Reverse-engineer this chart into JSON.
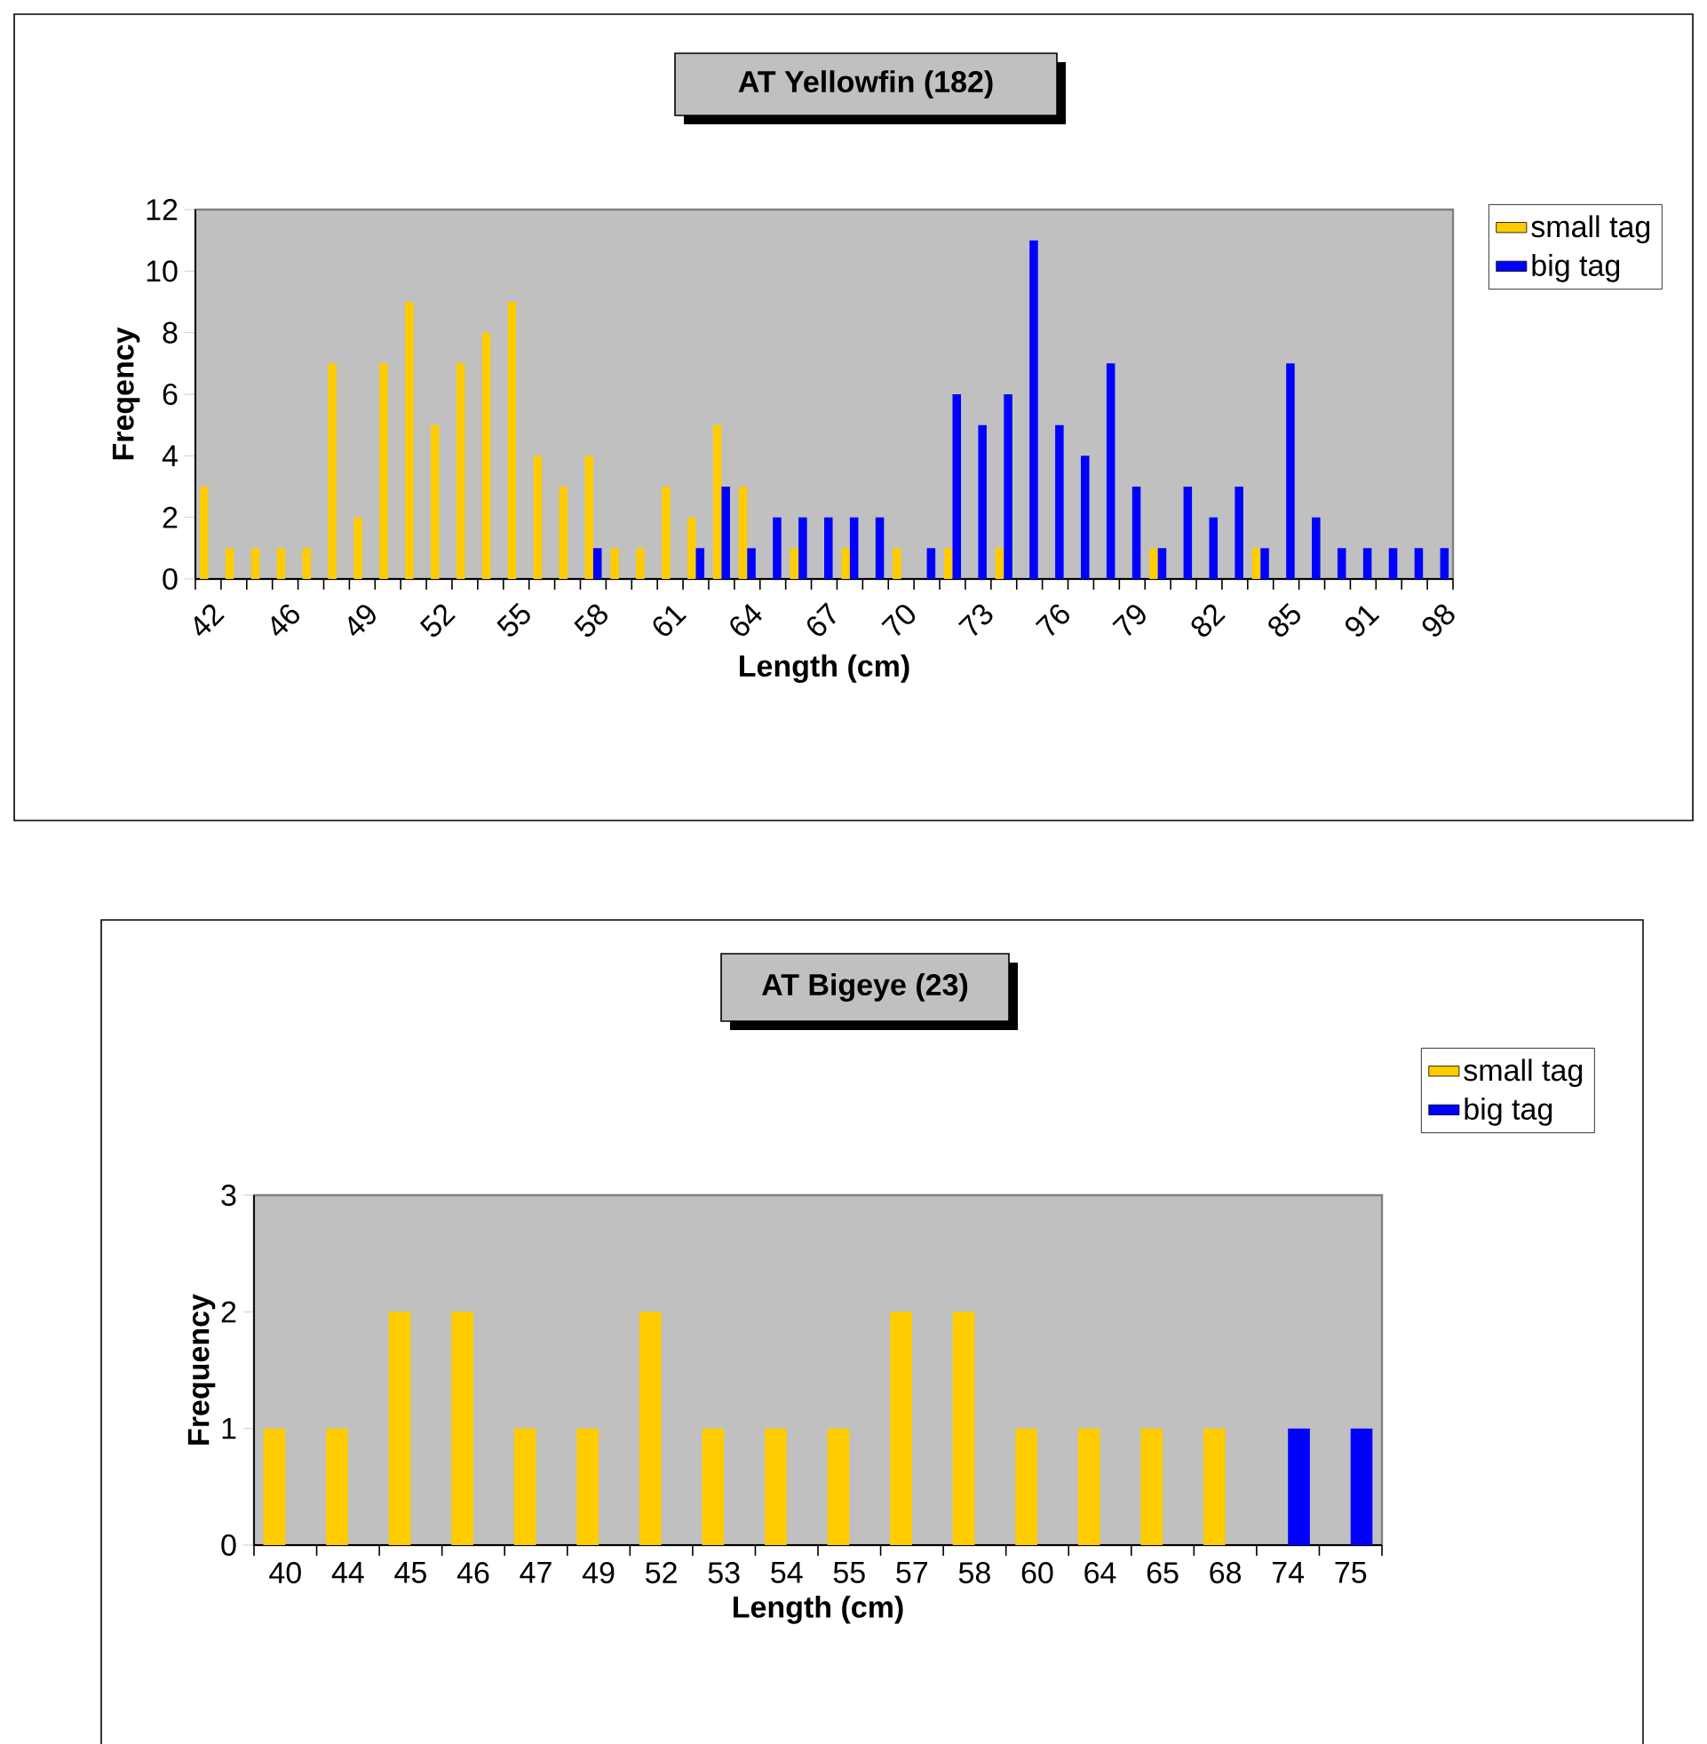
{
  "chart_data": [
    {
      "type": "bar",
      "title": "AT Yellowfin (182)",
      "xlabel": "Length (cm)",
      "ylabel": "Freqency",
      "categories": [
        "42",
        null,
        null,
        "46",
        null,
        null,
        "49",
        null,
        null,
        "52",
        null,
        null,
        "55",
        null,
        null,
        "58",
        null,
        null,
        "61",
        null,
        null,
        "64",
        null,
        null,
        "67",
        null,
        null,
        "70",
        null,
        null,
        "73",
        null,
        null,
        "76",
        null,
        null,
        "79",
        null,
        null,
        "82",
        null,
        null,
        "85",
        null,
        null,
        "91",
        null,
        null,
        "98"
      ],
      "series": [
        {
          "name": "small tag",
          "color": "#ffcc00",
          "values": [
            3,
            1,
            1,
            1,
            1,
            7,
            2,
            7,
            9,
            5,
            7,
            8,
            9,
            4,
            3,
            4,
            1,
            1,
            3,
            2,
            5,
            3,
            0,
            1,
            0,
            1,
            0,
            1,
            0,
            1,
            0,
            1,
            0,
            0,
            0,
            0,
            0,
            1,
            0,
            0,
            0,
            1,
            0,
            0,
            0,
            0,
            0,
            0,
            0
          ]
        },
        {
          "name": "big tag",
          "color": "#0000ff",
          "values": [
            0,
            0,
            0,
            0,
            0,
            0,
            0,
            0,
            0,
            0,
            0,
            0,
            0,
            0,
            0,
            1,
            0,
            0,
            0,
            1,
            3,
            1,
            2,
            2,
            2,
            2,
            2,
            0,
            1,
            6,
            5,
            6,
            11,
            5,
            4,
            7,
            3,
            1,
            3,
            2,
            3,
            1,
            7,
            2,
            1,
            1,
            1,
            1,
            1
          ]
        }
      ],
      "ylim": [
        0,
        12
      ],
      "yticks": [
        0,
        2,
        4,
        6,
        8,
        10,
        12
      ],
      "legend": "right"
    },
    {
      "type": "bar",
      "title": "AT Bigeye (23)",
      "xlabel": "Length (cm)",
      "ylabel": "Frequency",
      "categories": [
        "40",
        "44",
        "45",
        "46",
        "47",
        "49",
        "52",
        "53",
        "54",
        "55",
        "57",
        "58",
        "60",
        "64",
        "65",
        "68",
        "74",
        "75"
      ],
      "series": [
        {
          "name": "small tag",
          "color": "#ffcc00",
          "values": [
            1,
            1,
            2,
            2,
            1,
            1,
            2,
            1,
            1,
            1,
            2,
            2,
            1,
            1,
            1,
            1,
            0,
            0
          ]
        },
        {
          "name": "big tag",
          "color": "#0000ff",
          "values": [
            0,
            0,
            0,
            0,
            0,
            0,
            0,
            0,
            0,
            0,
            0,
            0,
            0,
            0,
            0,
            0,
            1,
            1
          ]
        }
      ],
      "ylim": [
        0,
        3
      ],
      "yticks": [
        0,
        1,
        2,
        3
      ],
      "legend": "right"
    }
  ]
}
